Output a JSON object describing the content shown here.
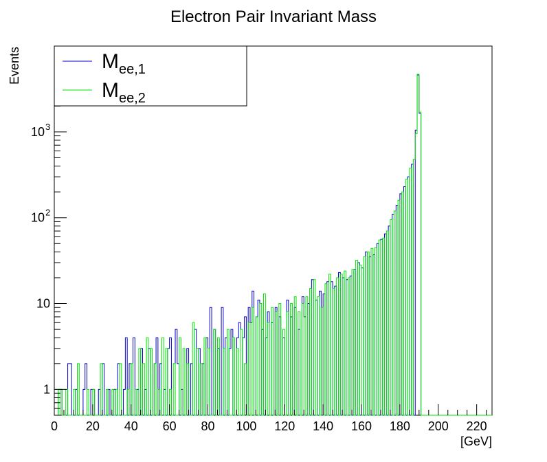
{
  "chart_data": {
    "type": "histogram",
    "title": "Electron Pair Invariant Mass",
    "xlabel": "[GeV]",
    "ylabel": "Events",
    "yscale": "log",
    "xlim": [
      0,
      228
    ],
    "ylim": [
      0.5,
      10000
    ],
    "bin_width": 1,
    "x_ticks": [
      0,
      20,
      40,
      60,
      80,
      100,
      120,
      140,
      160,
      180,
      200,
      220
    ],
    "y_ticks": [
      {
        "value": 1,
        "label": "1"
      },
      {
        "value": 10,
        "label": "10"
      },
      {
        "value": 100,
        "label": "10",
        "exp": "2"
      },
      {
        "value": 1000,
        "label": "10",
        "exp": "3"
      }
    ],
    "legend": [
      {
        "main": "M",
        "sub": "ee,1",
        "color": "#0000cc"
      },
      {
        "main": "M",
        "sub": "ee,2",
        "color": "#00e600"
      }
    ],
    "series": [
      {
        "name": "M_ee,1",
        "color": "#0000cc",
        "points": [
          [
            2,
            1
          ],
          [
            3,
            1
          ],
          [
            7,
            2
          ],
          [
            8,
            2
          ],
          [
            11,
            1
          ],
          [
            15,
            1
          ],
          [
            16,
            2
          ],
          [
            19,
            1
          ],
          [
            20,
            1
          ],
          [
            23,
            1
          ],
          [
            25,
            2
          ],
          [
            28,
            1
          ],
          [
            31,
            1
          ],
          [
            33,
            2
          ],
          [
            36,
            1
          ],
          [
            37,
            4
          ],
          [
            39,
            2
          ],
          [
            41,
            4
          ],
          [
            43,
            1
          ],
          [
            45,
            3
          ],
          [
            47,
            1
          ],
          [
            49,
            3
          ],
          [
            52,
            2
          ],
          [
            53,
            4
          ],
          [
            55,
            2
          ],
          [
            57,
            1
          ],
          [
            59,
            3
          ],
          [
            60,
            4
          ],
          [
            63,
            5
          ],
          [
            64,
            2
          ],
          [
            66,
            1
          ],
          [
            69,
            3
          ],
          [
            71,
            2
          ],
          [
            73,
            5
          ],
          [
            75,
            3
          ],
          [
            77,
            2
          ],
          [
            79,
            4
          ],
          [
            81,
            9
          ],
          [
            83,
            5
          ],
          [
            85,
            3
          ],
          [
            87,
            9
          ],
          [
            89,
            4
          ],
          [
            91,
            3
          ],
          [
            92,
            5
          ],
          [
            95,
            4
          ],
          [
            96,
            6
          ],
          [
            98,
            4
          ],
          [
            99,
            7
          ],
          [
            101,
            9
          ],
          [
            102,
            6
          ],
          [
            103,
            14
          ],
          [
            105,
            7
          ],
          [
            106,
            11
          ],
          [
            108,
            5
          ],
          [
            110,
            4
          ],
          [
            111,
            8
          ],
          [
            113,
            6
          ],
          [
            115,
            9
          ],
          [
            117,
            7
          ],
          [
            119,
            4
          ],
          [
            121,
            11
          ],
          [
            123,
            7
          ],
          [
            125,
            9
          ],
          [
            127,
            5
          ],
          [
            129,
            12
          ],
          [
            130,
            7
          ],
          [
            132,
            10
          ],
          [
            134,
            19
          ],
          [
            136,
            11
          ],
          [
            138,
            14
          ],
          [
            140,
            13
          ],
          [
            142,
            18
          ],
          [
            144,
            18
          ],
          [
            146,
            16
          ],
          [
            148,
            23
          ],
          [
            150,
            20
          ],
          [
            152,
            19
          ],
          [
            154,
            21
          ],
          [
            156,
            25
          ],
          [
            158,
            30
          ],
          [
            160,
            26
          ],
          [
            162,
            40
          ],
          [
            164,
            35
          ],
          [
            166,
            37
          ],
          [
            168,
            50
          ],
          [
            170,
            56
          ],
          [
            172,
            65
          ],
          [
            174,
            80
          ],
          [
            176,
            110
          ],
          [
            178,
            140
          ],
          [
            180,
            190
          ],
          [
            182,
            230
          ],
          [
            184,
            300
          ],
          [
            186,
            420
          ],
          [
            188,
            1050
          ],
          [
            189,
            4600
          ],
          [
            190,
            1650
          ]
        ]
      },
      {
        "name": "M_ee,2",
        "color": "#00e600",
        "points": [
          [
            0,
            1
          ],
          [
            1,
            1
          ],
          [
            3,
            1
          ],
          [
            6,
            1
          ],
          [
            10,
            1
          ],
          [
            12,
            2
          ],
          [
            17,
            1
          ],
          [
            20,
            1
          ],
          [
            24,
            2
          ],
          [
            27,
            1
          ],
          [
            30,
            1
          ],
          [
            32,
            1
          ],
          [
            34,
            2
          ],
          [
            38,
            1
          ],
          [
            40,
            2
          ],
          [
            42,
            1
          ],
          [
            44,
            3
          ],
          [
            46,
            2
          ],
          [
            48,
            4
          ],
          [
            50,
            3
          ],
          [
            52,
            2
          ],
          [
            54,
            1
          ],
          [
            56,
            4
          ],
          [
            58,
            3
          ],
          [
            60,
            1
          ],
          [
            62,
            2
          ],
          [
            65,
            4
          ],
          [
            67,
            3
          ],
          [
            69,
            2
          ],
          [
            72,
            6
          ],
          [
            74,
            3
          ],
          [
            76,
            2
          ],
          [
            78,
            4
          ],
          [
            80,
            3
          ],
          [
            83,
            5
          ],
          [
            85,
            4
          ],
          [
            88,
            3
          ],
          [
            90,
            5
          ],
          [
            93,
            4
          ],
          [
            95,
            3
          ],
          [
            97,
            5
          ],
          [
            99,
            2
          ],
          [
            101,
            6
          ],
          [
            103,
            9
          ],
          [
            105,
            7
          ],
          [
            107,
            10
          ],
          [
            109,
            13
          ],
          [
            111,
            6
          ],
          [
            113,
            9
          ],
          [
            115,
            8
          ],
          [
            117,
            10
          ],
          [
            119,
            5
          ],
          [
            121,
            8
          ],
          [
            123,
            10
          ],
          [
            125,
            12
          ],
          [
            127,
            8
          ],
          [
            129,
            10
          ],
          [
            131,
            12
          ],
          [
            133,
            15
          ],
          [
            135,
            19
          ],
          [
            137,
            12
          ],
          [
            139,
            9
          ],
          [
            141,
            17
          ],
          [
            143,
            22
          ],
          [
            145,
            15
          ],
          [
            147,
            20
          ],
          [
            149,
            22
          ],
          [
            151,
            24
          ],
          [
            153,
            20
          ],
          [
            155,
            25
          ],
          [
            157,
            32
          ],
          [
            159,
            28
          ],
          [
            161,
            35
          ],
          [
            163,
            40
          ],
          [
            165,
            44
          ],
          [
            167,
            45
          ],
          [
            169,
            55
          ],
          [
            171,
            58
          ],
          [
            173,
            70
          ],
          [
            175,
            95
          ],
          [
            177,
            120
          ],
          [
            179,
            160
          ],
          [
            181,
            200
          ],
          [
            183,
            280
          ],
          [
            185,
            380
          ],
          [
            187,
            480
          ],
          [
            188,
            950
          ],
          [
            189,
            4700
          ],
          [
            190,
            1700
          ]
        ]
      }
    ]
  }
}
